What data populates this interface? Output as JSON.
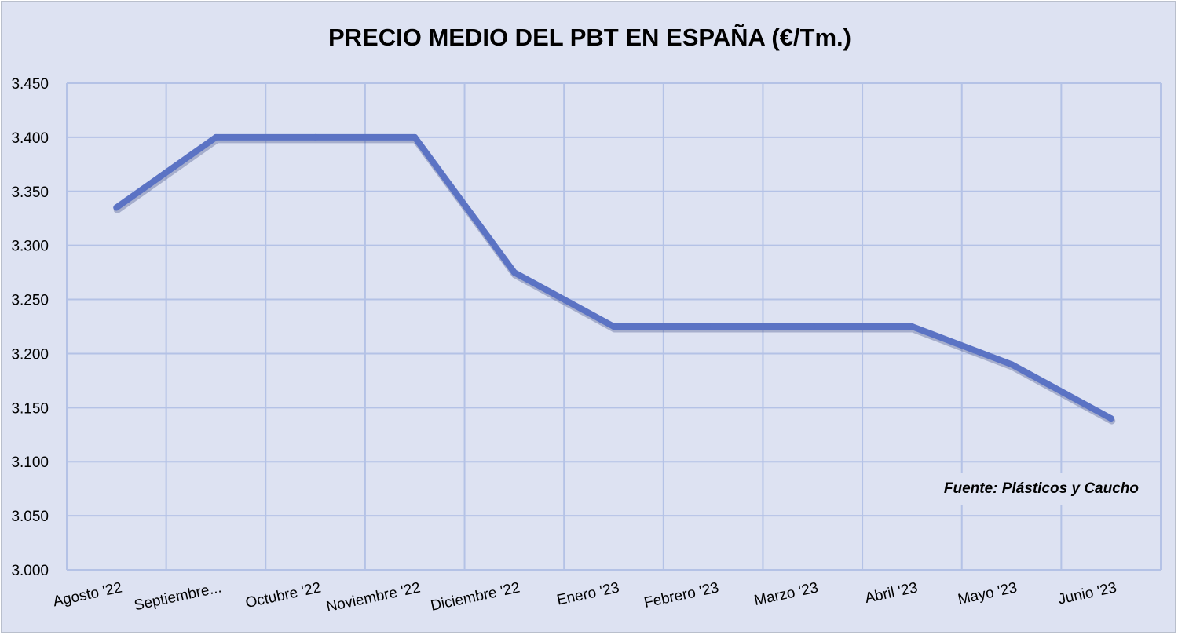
{
  "chart_data": {
    "type": "line",
    "title": "PRECIO MEDIO DEL PBT EN ESPAÑA (€/Tm.)",
    "categories": [
      "Agosto '22",
      "Septiembre...",
      "Octubre '22",
      "Noviembre '22",
      "Diciembre '22",
      "Enero '23",
      "Febrero '23",
      "Marzo '23",
      "Abril '23",
      "Mayo '23",
      "Junio '23"
    ],
    "series": [
      {
        "values": [
          3335,
          3400,
          3400,
          3400,
          3275,
          3225,
          3225,
          3225,
          3225,
          3190,
          3140
        ]
      }
    ],
    "ylim": [
      3000,
      3450
    ],
    "yticks": [
      "3.000",
      "3.050",
      "3.100",
      "3.150",
      "3.200",
      "3.250",
      "3.300",
      "3.350",
      "3.400",
      "3.450"
    ],
    "grid": true,
    "legend": "none",
    "annotation": "Fuente: Plásticos y Caucho",
    "colors": {
      "line": "#5b73c4",
      "grid": "#b4c2e6",
      "background": "#dde2f2"
    }
  }
}
